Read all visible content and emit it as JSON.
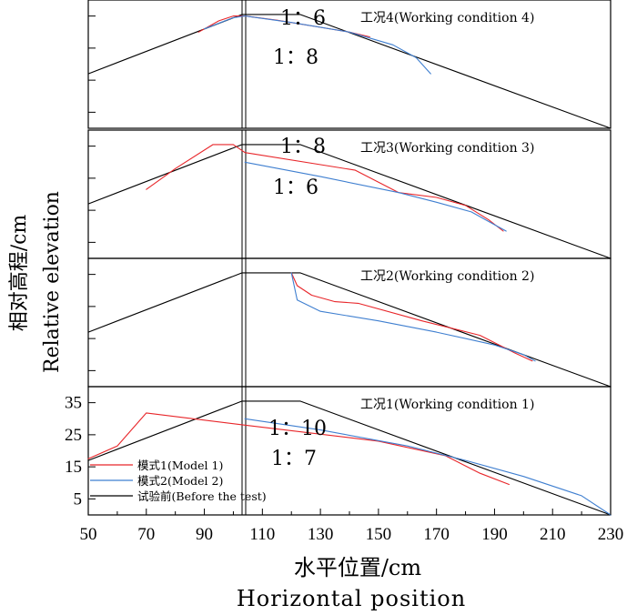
{
  "chart_data": {
    "type": "line",
    "xlabel": "水平位置/cm",
    "xlabel_en": "Horizontal position",
    "ylabel": "相对高程/cm",
    "ylabel_en": "Relative elevation",
    "xlim": [
      50,
      230
    ],
    "ylim": [
      0,
      40
    ],
    "x_ticks": [
      50,
      70,
      90,
      110,
      130,
      150,
      170,
      190,
      210,
      230
    ],
    "y_ticks": [
      5,
      15,
      25,
      35
    ],
    "legend": {
      "position": "lower-left",
      "entries": [
        {
          "label": "模式1(Model 1)",
          "color": "#e8262a"
        },
        {
          "label": "模式2(Model 2)",
          "color": "#3f7fd0"
        },
        {
          "label": "试验前(Before the test)",
          "color": "#000000"
        }
      ]
    },
    "panels": [
      {
        "title": "工况4(Working condition 4)",
        "slope_labels": [
          "1：6",
          "1：8"
        ],
        "series": [
          {
            "name": "试验前(Before the test)",
            "color": "#000000",
            "x": [
              50,
              103,
              104.5,
              123,
              230
            ],
            "y": [
              17,
              35.5,
              35.5,
              35.5,
              0
            ]
          },
          {
            "name": "模式1(Model 1)",
            "color": "#e8262a",
            "x": [
              88,
              95,
              100,
              104,
              115,
              130,
              140,
              147
            ],
            "y": [
              30,
              33.5,
              35,
              35,
              33.7,
              31.5,
              30,
              28.5
            ]
          },
          {
            "name": "模式2(Model 2)",
            "color": "#3f7fd0",
            "x": [
              90,
              100,
              104,
              120,
              140,
              155,
              163,
              168
            ],
            "y": [
              31,
              34.5,
              35,
              33,
              30,
              26,
              22,
              17
            ]
          }
        ]
      },
      {
        "title": "工况3(Working condition 3)",
        "slope_labels": [
          "1：8",
          "1：6"
        ],
        "series": [
          {
            "name": "试验前(Before the test)",
            "color": "#000000",
            "x": [
              50,
              103,
              104.5,
              123,
              230
            ],
            "y": [
              17,
              35.5,
              35.5,
              35.5,
              0
            ]
          },
          {
            "name": "模式1(Model 1)",
            "color": "#e8262a",
            "x": [
              70,
              80,
              93,
              100,
              104,
              142,
              157,
              170,
              180,
              188,
              193
            ],
            "y": [
              21.5,
              28,
              35.5,
              35.5,
              33,
              27.5,
              20.5,
              19,
              16.5,
              12,
              8.5
            ]
          },
          {
            "name": "模式2(Model 2)",
            "color": "#3f7fd0",
            "x": [
              104,
              130,
              157,
              170,
              182,
              190,
              194
            ],
            "y": [
              30,
              25.5,
              20.5,
              17.5,
              14.5,
              10.5,
              8.5
            ]
          }
        ]
      },
      {
        "title": "工况2(Working condition 2)",
        "slope_labels": [],
        "series": [
          {
            "name": "试验前(Before the test)",
            "color": "#000000",
            "x": [
              50,
              103,
              104.5,
              123,
              230
            ],
            "y": [
              17,
              35.5,
              35.5,
              35.5,
              0
            ]
          },
          {
            "name": "模式1(Model 1)",
            "color": "#e8262a",
            "x": [
              120,
              122,
              127,
              135,
              143,
              165,
              185,
              197,
              203
            ],
            "y": [
              35.5,
              31.5,
              28.5,
              26.5,
              26,
              20.5,
              16,
              10.5,
              8
            ]
          },
          {
            "name": "模式2(Model 2)",
            "color": "#3f7fd0",
            "x": [
              120,
              122,
              130,
              150,
              170,
              190,
              200,
              204
            ],
            "y": [
              35.5,
              27,
              23.5,
              20.5,
              17,
              13,
              10,
              8
            ]
          }
        ]
      },
      {
        "title": "工况1(Working condition 1)",
        "slope_labels": [
          "1：10",
          "1：7"
        ],
        "series": [
          {
            "name": "试验前(Before the test)",
            "color": "#000000",
            "x": [
              50,
              103,
              104.5,
              123,
              230
            ],
            "y": [
              17,
              35.5,
              35.5,
              35.5,
              0
            ]
          },
          {
            "name": "模式1(Model 1)",
            "color": "#e8262a",
            "x": [
              50,
              60,
              70,
              104,
              150,
              173,
              185,
              195
            ],
            "y": [
              17.5,
              21.5,
              31.8,
              28,
              23,
              18.5,
              13,
              9.5
            ]
          },
          {
            "name": "模式2(Model 2)",
            "color": "#3f7fd0",
            "x": [
              104,
              130,
              160,
              180,
              200,
              220,
              230
            ],
            "y": [
              30,
              26.5,
              21.5,
              17,
              12,
              6,
              0
            ]
          }
        ]
      }
    ]
  }
}
